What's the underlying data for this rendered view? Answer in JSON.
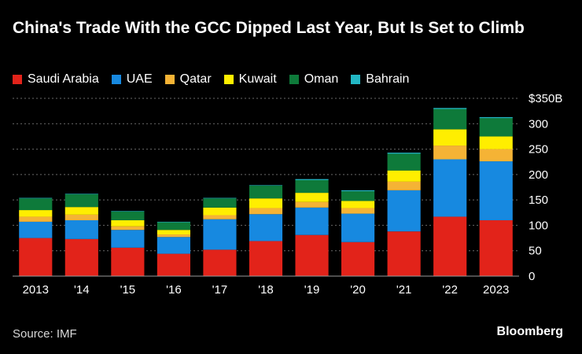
{
  "chart_data": {
    "type": "bar",
    "stacked": true,
    "title": "China's Trade With the GCC Dipped Last Year, But Is Set to Climb",
    "xlabel": "",
    "ylabel": "",
    "ylim": [
      0,
      350
    ],
    "yticks": [
      0,
      50,
      100,
      150,
      200,
      250,
      300,
      350
    ],
    "ytick_labels": [
      "0",
      "50",
      "100",
      "150",
      "200",
      "250",
      "300",
      "$350B"
    ],
    "grid": true,
    "legend_position": "top-left",
    "categories": [
      "2013",
      "'14",
      "'15",
      "'16",
      "'17",
      "'18",
      "'19",
      "'20",
      "'21",
      "'22",
      "2023"
    ],
    "series": [
      {
        "name": "Saudi Arabia",
        "color": "#e2231a",
        "values": [
          75,
          73,
          56,
          44,
          52,
          69,
          81,
          67,
          88,
          117,
          110
        ]
      },
      {
        "name": "UAE",
        "color": "#1789e0",
        "values": [
          32,
          37,
          35,
          33,
          60,
          53,
          54,
          56,
          81,
          113,
          116
        ]
      },
      {
        "name": "Qatar",
        "color": "#f5b335",
        "values": [
          10,
          11,
          7,
          5,
          8,
          12,
          11,
          11,
          17,
          27,
          24
        ]
      },
      {
        "name": "Kuwait",
        "color": "#ffee00",
        "values": [
          13,
          15,
          12,
          9,
          15,
          19,
          18,
          14,
          22,
          32,
          25
        ]
      },
      {
        "name": "Oman",
        "color": "#0e7a3a",
        "values": [
          23,
          25,
          17,
          15,
          18,
          25,
          25,
          19,
          33,
          40,
          36
        ]
      },
      {
        "name": "Bahrain",
        "color": "#22b7c4",
        "values": [
          1,
          1,
          1,
          1,
          1,
          1,
          2,
          2,
          2,
          2,
          2
        ]
      }
    ]
  },
  "source": "Source: IMF",
  "brand": "Bloomberg"
}
